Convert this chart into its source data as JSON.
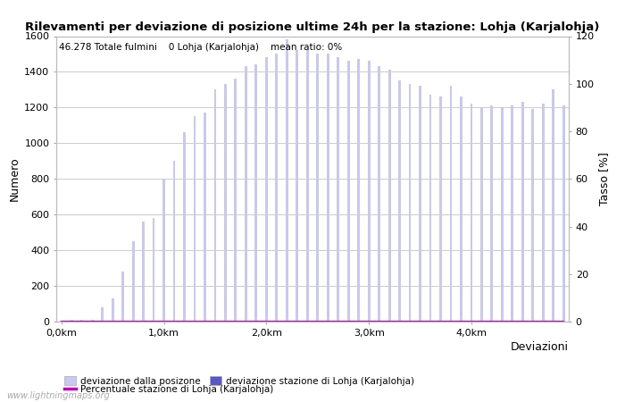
{
  "title": "Rilevamenti per deviazione di posizione ultime 24h per la stazione: Lohja (Karjalohja)",
  "annotation": "46.278 Totale fulmini    0 Lohja (Karjalohja)    mean ratio: 0%",
  "ylabel_left": "Numero",
  "ylabel_right": "Tasso [%]",
  "xlabel_right_label": "Deviazioni",
  "x_tick_labels": [
    "0,0km",
    "1,0km",
    "2,0km",
    "3,0km",
    "4,0km"
  ],
  "x_tick_positions": [
    0,
    10,
    20,
    30,
    40
  ],
  "ylim_left": [
    0,
    1600
  ],
  "ylim_right": [
    0,
    120
  ],
  "yticks_left": [
    0,
    200,
    400,
    600,
    800,
    1000,
    1200,
    1400,
    1600
  ],
  "yticks_right": [
    0,
    20,
    40,
    60,
    80,
    100,
    120
  ],
  "bar_color_light": "#c8c8f0",
  "bar_color_dark": "#5858c8",
  "line_color": "#cc00cc",
  "background_color": "#ffffff",
  "grid_color": "#cccccc",
  "watermark": "www.lightningmaps.org",
  "legend_label_1": "deviazione dalla posizone",
  "legend_label_2": "deviazione stazione di Lohja (Karjalohja)",
  "legend_label_3": "Percentuale stazione di Lohja (Karjalohja)",
  "bar_values": [
    5,
    8,
    12,
    10,
    80,
    130,
    280,
    450,
    560,
    580,
    800,
    900,
    1060,
    1150,
    1170,
    1300,
    1330,
    1360,
    1430,
    1440,
    1480,
    1500,
    1580,
    1520,
    1520,
    1500,
    1500,
    1480,
    1460,
    1470,
    1460,
    1430,
    1410,
    1350,
    1330,
    1320,
    1270,
    1260,
    1320,
    1260,
    1220,
    1200,
    1210,
    1200,
    1210,
    1230,
    1190,
    1220,
    1300,
    1210
  ],
  "station_bar_values": [
    0,
    0,
    0,
    0,
    0,
    0,
    0,
    0,
    0,
    0,
    0,
    0,
    0,
    0,
    0,
    0,
    0,
    0,
    0,
    0,
    0,
    0,
    0,
    0,
    0,
    0,
    0,
    0,
    0,
    0,
    0,
    0,
    0,
    0,
    0,
    0,
    0,
    0,
    0,
    0,
    0,
    0,
    0,
    0,
    0,
    0,
    0,
    0,
    0,
    0
  ],
  "ratio_values": [
    0,
    0,
    0,
    0,
    0,
    0,
    0,
    0,
    0,
    0,
    0,
    0,
    0,
    0,
    0,
    0,
    0,
    0,
    0,
    0,
    0,
    0,
    0,
    0,
    0,
    0,
    0,
    0,
    0,
    0,
    0,
    0,
    0,
    0,
    0,
    0,
    0,
    0,
    0,
    0,
    0,
    0,
    0,
    0,
    0,
    0,
    0,
    0,
    0,
    0
  ]
}
